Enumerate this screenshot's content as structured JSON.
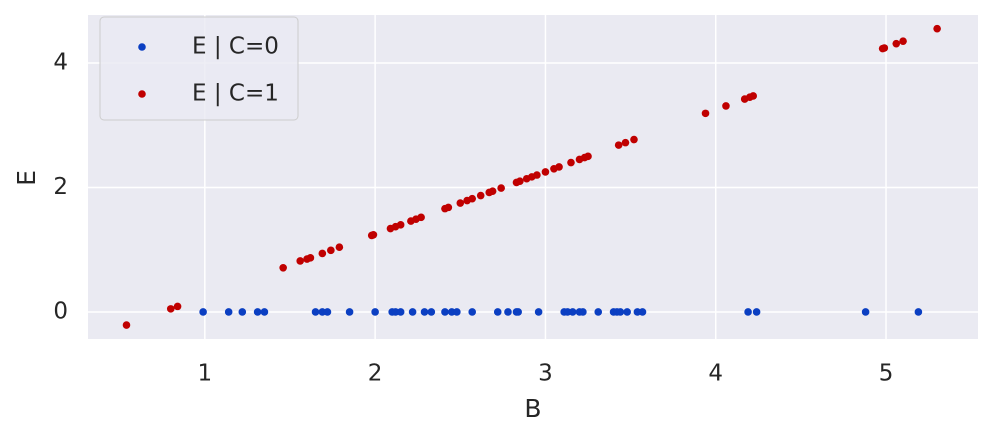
{
  "chart_data": {
    "type": "scatter",
    "x_label": "B",
    "y_label": "E",
    "xlim": [
      0.314,
      5.54
    ],
    "ylim": [
      -0.434,
      4.77
    ],
    "xticks": [
      1,
      2,
      3,
      4,
      5
    ],
    "yticks": [
      0,
      2,
      4
    ],
    "grid": true,
    "legend": "upper left",
    "series": [
      {
        "name": "E | C=0",
        "color": "#0b3fc2",
        "x": [
          0.99,
          1.14,
          1.22,
          1.31,
          1.35,
          1.65,
          1.69,
          1.72,
          1.85,
          2.0,
          2.1,
          2.12,
          2.15,
          2.22,
          2.29,
          2.33,
          2.41,
          2.45,
          2.48,
          2.57,
          2.72,
          2.78,
          2.83,
          2.84,
          2.96,
          3.11,
          3.13,
          3.16,
          3.2,
          3.22,
          3.31,
          3.4,
          3.42,
          3.44,
          3.48,
          3.54,
          3.57,
          4.19,
          4.24,
          4.88,
          5.19
        ],
        "values": [
          0,
          0,
          0,
          0,
          0,
          0,
          0,
          0,
          0,
          0,
          0,
          0,
          0,
          0,
          0,
          0,
          0,
          0,
          0,
          0,
          0,
          0,
          0,
          0,
          0,
          0,
          0,
          0,
          0,
          0,
          0,
          0,
          0,
          0,
          0,
          0,
          0,
          0,
          0,
          0,
          0
        ]
      },
      {
        "name": "E | C=1",
        "color": "#c00000",
        "x": [
          0.54,
          0.8,
          0.84,
          1.46,
          1.56,
          1.6,
          1.62,
          1.69,
          1.74,
          1.79,
          1.98,
          1.99,
          2.09,
          2.12,
          2.15,
          2.21,
          2.24,
          2.27,
          2.41,
          2.43,
          2.5,
          2.54,
          2.57,
          2.62,
          2.67,
          2.69,
          2.74,
          2.83,
          2.85,
          2.89,
          2.92,
          2.95,
          3.0,
          3.05,
          3.08,
          3.15,
          3.2,
          3.23,
          3.25,
          3.43,
          3.47,
          3.52,
          3.94,
          4.06,
          4.17,
          4.2,
          4.22,
          4.98,
          4.99,
          5.06,
          5.1,
          5.3
        ],
        "values": [
          -0.21,
          0.05,
          0.09,
          0.71,
          0.82,
          0.85,
          0.87,
          0.94,
          0.99,
          1.04,
          1.23,
          1.24,
          1.34,
          1.37,
          1.4,
          1.46,
          1.49,
          1.52,
          1.66,
          1.68,
          1.75,
          1.79,
          1.82,
          1.87,
          1.92,
          1.94,
          1.99,
          2.08,
          2.1,
          2.14,
          2.17,
          2.2,
          2.25,
          2.3,
          2.33,
          2.4,
          2.45,
          2.48,
          2.5,
          2.68,
          2.72,
          2.77,
          3.19,
          3.31,
          3.42,
          3.45,
          3.47,
          4.23,
          4.24,
          4.31,
          4.35,
          4.55
        ]
      }
    ]
  }
}
